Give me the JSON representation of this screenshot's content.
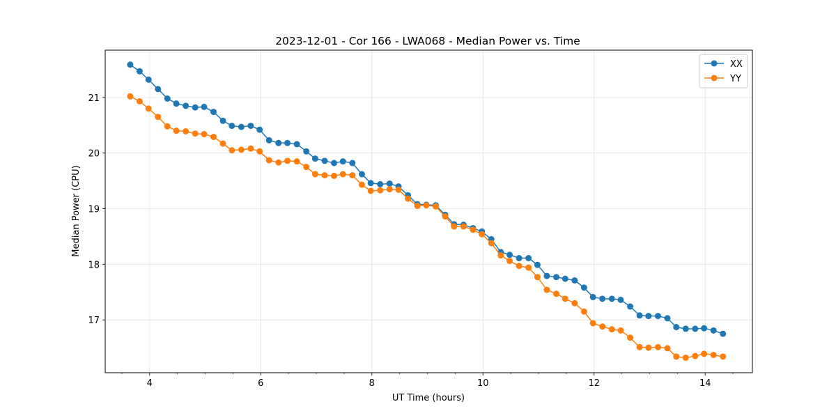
{
  "chart_data": {
    "type": "line",
    "title": "2023-12-01 - Cor 166 - LWA068 - Median Power vs. Time",
    "xlabel": "UT Time (hours)",
    "ylabel": "Median Power (CPU)",
    "xlim": [
      3.2,
      14.85
    ],
    "ylim": [
      16.05,
      21.85
    ],
    "xticks": [
      4,
      6,
      8,
      10,
      12,
      14
    ],
    "yticks": [
      17,
      18,
      19,
      20,
      21
    ],
    "grid": true,
    "legend_position": "top-right",
    "x": [
      3.65,
      3.82,
      3.98,
      4.15,
      4.32,
      4.48,
      4.65,
      4.82,
      4.98,
      5.15,
      5.32,
      5.48,
      5.65,
      5.82,
      5.98,
      6.15,
      6.32,
      6.48,
      6.65,
      6.82,
      6.98,
      7.15,
      7.32,
      7.48,
      7.65,
      7.82,
      7.98,
      8.15,
      8.32,
      8.48,
      8.65,
      8.82,
      8.98,
      9.15,
      9.32,
      9.48,
      9.65,
      9.82,
      9.98,
      10.15,
      10.32,
      10.48,
      10.65,
      10.82,
      10.98,
      11.15,
      11.32,
      11.48,
      11.65,
      11.82,
      11.98,
      12.15,
      12.32,
      12.48,
      12.65,
      12.82,
      12.98,
      13.15,
      13.32,
      13.48,
      13.65,
      13.82,
      13.98,
      14.15,
      14.32
    ],
    "series": [
      {
        "name": "XX",
        "color": "#1f77b4",
        "values": [
          21.59,
          21.47,
          21.32,
          21.15,
          20.98,
          20.89,
          20.85,
          20.82,
          20.83,
          20.74,
          20.58,
          20.49,
          20.47,
          20.49,
          20.42,
          20.23,
          20.18,
          20.18,
          20.16,
          20.03,
          19.9,
          19.86,
          19.82,
          19.85,
          19.82,
          19.62,
          19.46,
          19.44,
          19.45,
          19.4,
          19.24,
          19.08,
          19.07,
          19.06,
          18.89,
          18.72,
          18.71,
          18.65,
          18.59,
          18.45,
          18.22,
          18.17,
          18.11,
          18.11,
          17.99,
          17.79,
          17.77,
          17.74,
          17.71,
          17.58,
          17.41,
          17.38,
          17.38,
          17.36,
          17.24,
          17.08,
          17.07,
          17.07,
          17.03,
          16.87,
          16.84,
          16.84,
          16.85,
          16.81,
          16.75
        ]
      },
      {
        "name": "YY",
        "color": "#ff7f0e",
        "values": [
          21.02,
          20.93,
          20.8,
          20.65,
          20.48,
          20.4,
          20.39,
          20.35,
          20.34,
          20.29,
          20.17,
          20.05,
          20.06,
          20.08,
          20.03,
          19.87,
          19.83,
          19.86,
          19.85,
          19.75,
          19.62,
          19.6,
          19.59,
          19.62,
          19.6,
          19.43,
          19.32,
          19.33,
          19.35,
          19.34,
          19.18,
          19.05,
          19.06,
          19.04,
          18.86,
          18.68,
          18.68,
          18.62,
          18.54,
          18.38,
          18.16,
          18.06,
          17.97,
          17.94,
          17.77,
          17.54,
          17.47,
          17.38,
          17.3,
          17.15,
          16.94,
          16.88,
          16.83,
          16.81,
          16.68,
          16.51,
          16.5,
          16.51,
          16.49,
          16.34,
          16.32,
          16.35,
          16.39,
          16.37,
          16.34
        ]
      }
    ]
  }
}
